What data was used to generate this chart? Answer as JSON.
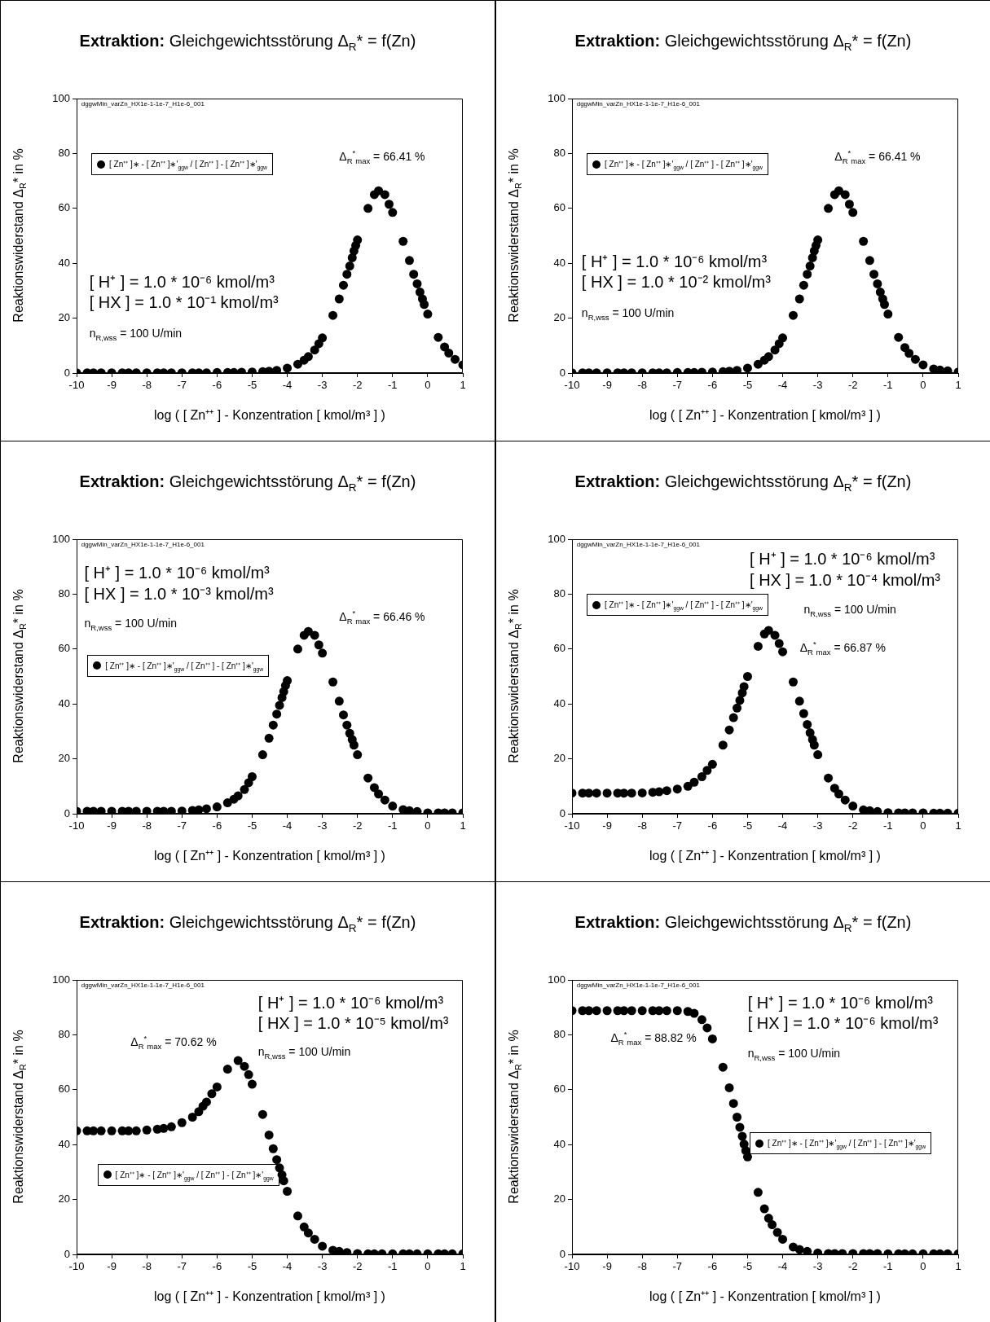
{
  "chart_data": [
    {
      "type": "scatter",
      "title": "Extraktion: Gleichgewichtsstörung Δ$_{R}$* = f(Zn)",
      "xlabel": "log ( [ Zn⁺⁺ ] - Konzentration  [ kmol/m³ ] )",
      "ylabel": "Reaktionswiderstand Δ$_{R}$* in  %",
      "series": [
        {
          "name": "[ Zn⁺⁺ ]∗ - [ Zn⁺⁺ ]∗'$_{ggw}$ / [ Zn⁺⁺ ] - [ Zn⁺⁺ ]∗'$_{ggw}$",
          "color": "#000000",
          "x": [
            -10,
            -9.7,
            -9.52,
            -9.3,
            -9,
            -8.7,
            -8.52,
            -8.3,
            -8,
            -7.7,
            -7.52,
            -7.3,
            -7,
            -6.7,
            -6.52,
            -6.3,
            -6,
            -5.7,
            -5.52,
            -5.3,
            -5,
            -4.7,
            -4.52,
            -4.3,
            -4,
            -3.7,
            -3.52,
            -3.4,
            -3.22,
            -3.1,
            -3,
            -2.7,
            -2.52,
            -2.4,
            -2.3,
            -2.22,
            -2.15,
            -2.1,
            -2.05,
            -2,
            -1.7,
            -1.52,
            -1.4,
            -1.22,
            -1.1,
            -1,
            -0.7,
            -0.52,
            -0.4,
            -0.3,
            -0.22,
            -0.15,
            -0.1,
            0,
            0.3,
            0.48,
            0.6,
            0.78,
            1
          ],
          "values": [
            0.1,
            0.1,
            0.1,
            0.1,
            0.1,
            0.1,
            0.1,
            0.1,
            0.1,
            0.1,
            0.1,
            0.1,
            0.1,
            0.1,
            0.1,
            0.1,
            0.2,
            0.2,
            0.2,
            0.3,
            0.4,
            0.5,
            0.7,
            1.0,
            1.8,
            3.2,
            4.7,
            6,
            8.4,
            10.7,
            12.8,
            21,
            27,
            32,
            36,
            39,
            42,
            44.5,
            46.5,
            48.5,
            60,
            65,
            66.4,
            65,
            61.5,
            58.5,
            48,
            41,
            36,
            32.5,
            29.5,
            27,
            25,
            21.5,
            13,
            9.5,
            7.3,
            5,
            3
          ]
        }
      ],
      "xlim": [
        -10,
        1
      ],
      "xticks": [
        -10,
        -9,
        -8,
        -7,
        -6,
        -5,
        -4,
        -3,
        -2,
        -1,
        0,
        1
      ],
      "ylim": [
        0,
        100
      ],
      "yticks": [
        0,
        20,
        40,
        60,
        80,
        100
      ],
      "marker": "circle",
      "legend": "top left",
      "annotations": [
        "dggwMin_varZn_HX1e-1-1e-7_H1e-6_001",
        "[ H⁺ ] = 1.0 * 10⁻⁶ kmol/m³",
        "[ HX ] = 1.0 * 10⁻¹ kmol/m³",
        "n$_{R,wss}$ = 100 U/min",
        "Δ$_{R}$$^{*}$$_{max}$ = 66.41 %"
      ]
    },
    {
      "type": "scatter",
      "title": "Extraktion: Gleichgewichtsstörung Δ$_{R}$* = f(Zn)",
      "xlabel": "log ( [ Zn⁺⁺ ] - Konzentration  [ kmol/m³ ] )",
      "ylabel": "Reaktionswiderstand Δ$_{R}$* in  %",
      "series": [
        {
          "name": "[ Zn⁺⁺ ]∗ - [ Zn⁺⁺ ]∗'$_{ggw}$ / [ Zn⁺⁺ ] - [ Zn⁺⁺ ]∗'$_{ggw}$",
          "color": "#000000",
          "x": [
            -10,
            -9.7,
            -9.52,
            -9.3,
            -9,
            -8.7,
            -8.52,
            -8.3,
            -8,
            -7.7,
            -7.52,
            -7.3,
            -7,
            -6.7,
            -6.52,
            -6.3,
            -6,
            -5.7,
            -5.52,
            -5.3,
            -5,
            -4.7,
            -4.52,
            -4.4,
            -4.22,
            -4.1,
            -4,
            -3.7,
            -3.52,
            -3.4,
            -3.3,
            -3.22,
            -3.15,
            -3.1,
            -3.05,
            -3,
            -2.7,
            -2.52,
            -2.4,
            -2.22,
            -2.1,
            -2,
            -1.7,
            -1.52,
            -1.4,
            -1.3,
            -1.22,
            -1.15,
            -1.1,
            -1,
            -0.7,
            -0.52,
            -0.4,
            -0.22,
            0,
            0.3,
            0.48,
            0.7,
            1
          ],
          "values": [
            0.1,
            0.1,
            0.1,
            0.1,
            0.1,
            0.1,
            0.1,
            0.1,
            0.1,
            0.1,
            0.1,
            0.1,
            0.2,
            0.2,
            0.2,
            0.3,
            0.4,
            0.5,
            0.7,
            1.0,
            1.8,
            3.2,
            4.7,
            6,
            8.4,
            10.7,
            12.8,
            21,
            27,
            32,
            36,
            39,
            42,
            44.5,
            46.5,
            48.5,
            60,
            65,
            66.4,
            65,
            61.5,
            58.5,
            48,
            41,
            36,
            32.5,
            29.5,
            27,
            25,
            21.5,
            13,
            9.3,
            7.2,
            5,
            3,
            1.5,
            1.1,
            0.8,
            0.4
          ]
        }
      ],
      "xlim": [
        -10,
        1
      ],
      "xticks": [
        -10,
        -9,
        -8,
        -7,
        -6,
        -5,
        -4,
        -3,
        -2,
        -1,
        0,
        1
      ],
      "ylim": [
        0,
        100
      ],
      "yticks": [
        0,
        20,
        40,
        60,
        80,
        100
      ],
      "marker": "circle",
      "legend": "top left",
      "annotations": [
        "dggwMin_varZn_HX1e-1-1e-7_H1e-6_001",
        "[ H⁺ ] = 1.0 * 10⁻⁶ kmol/m³",
        "[ HX ] = 1.0 * 10⁻² kmol/m³",
        "n$_{R,wss}$ = 100 U/min",
        "Δ$_{R}$$^{*}$$_{max}$ = 66.41 %"
      ]
    },
    {
      "type": "scatter",
      "title": "Extraktion: Gleichgewichtsstörung Δ$_{R}$* = f(Zn)",
      "xlabel": "log ( [ Zn⁺⁺ ] - Konzentration  [ kmol/m³ ] )",
      "ylabel": "Reaktionswiderstand Δ$_{R}$* in  %",
      "series": [
        {
          "name": "[ Zn⁺⁺ ]∗ - [ Zn⁺⁺ ]∗'$_{ggw}$ / [ Zn⁺⁺ ] - [ Zn⁺⁺ ]∗'$_{ggw}$",
          "color": "#000000",
          "x": [
            -10,
            -9.7,
            -9.52,
            -9.3,
            -9,
            -8.7,
            -8.52,
            -8.3,
            -8,
            -7.7,
            -7.52,
            -7.3,
            -7,
            -6.7,
            -6.52,
            -6.3,
            -6,
            -5.7,
            -5.52,
            -5.4,
            -5.22,
            -5.1,
            -5,
            -4.7,
            -4.52,
            -4.4,
            -4.3,
            -4.22,
            -4.15,
            -4.1,
            -4.05,
            -4,
            -3.7,
            -3.52,
            -3.4,
            -3.22,
            -3.1,
            -3,
            -2.7,
            -2.52,
            -2.4,
            -2.3,
            -2.22,
            -2.15,
            -2.1,
            -2,
            -1.7,
            -1.52,
            -1.4,
            -1.22,
            -1,
            -0.7,
            -0.52,
            -0.3,
            0,
            0.3,
            0.48,
            0.7,
            1
          ],
          "values": [
            0.9,
            0.9,
            0.9,
            0.9,
            0.9,
            0.9,
            0.9,
            0.9,
            0.9,
            0.9,
            0.9,
            0.9,
            1.0,
            1.2,
            1.4,
            1.8,
            2.5,
            4,
            5.3,
            6.5,
            8.8,
            11.3,
            13.5,
            21.5,
            27.5,
            32.3,
            36.3,
            39.5,
            42.3,
            44.5,
            46.7,
            48.5,
            60,
            65,
            66.4,
            65,
            61.5,
            58.5,
            48,
            41,
            36,
            32.3,
            29.3,
            27,
            25,
            21.5,
            13,
            9.5,
            7.2,
            5,
            2.8,
            1.5,
            1.1,
            0.8,
            0.3,
            0.3,
            0.3,
            0.3,
            0.3
          ]
        }
      ],
      "xlim": [
        -10,
        1
      ],
      "xticks": [
        -10,
        -9,
        -8,
        -7,
        -6,
        -5,
        -4,
        -3,
        -2,
        -1,
        0,
        1
      ],
      "ylim": [
        0,
        100
      ],
      "yticks": [
        0,
        20,
        40,
        60,
        80,
        100
      ],
      "marker": "circle",
      "legend": "left",
      "annotations": [
        "dggwMin_varZn_HX1e-1-1e-7_H1e-6_001",
        "[ H⁺ ] = 1.0 * 10⁻⁶ kmol/m³",
        "[ HX ] = 1.0 * 10⁻³ kmol/m³",
        "n$_{R,wss}$ = 100 U/min",
        "Δ$_{R}$$^{*}$$_{max}$ = 66.46 %"
      ]
    },
    {
      "type": "scatter",
      "title": "Extraktion: Gleichgewichtsstörung Δ$_{R}$* = f(Zn)",
      "xlabel": "log ( [ Zn⁺⁺ ] - Konzentration  [ kmol/m³ ] )",
      "ylabel": "Reaktionswiderstand Δ$_{R}$* in  %",
      "series": [
        {
          "name": "[ Zn⁺⁺ ]∗ - [ Zn⁺⁺ ]∗'$_{ggw}$ / [ Zn⁺⁺ ] - [ Zn⁺⁺ ]∗'$_{ggw}$",
          "color": "#000000",
          "x": [
            -10,
            -9.7,
            -9.52,
            -9.3,
            -9,
            -8.7,
            -8.52,
            -8.3,
            -8,
            -7.7,
            -7.52,
            -7.3,
            -7,
            -6.7,
            -6.52,
            -6.3,
            -6.15,
            -6,
            -5.7,
            -5.52,
            -5.4,
            -5.3,
            -5.22,
            -5.15,
            -5.1,
            -5,
            -4.7,
            -4.52,
            -4.4,
            -4.22,
            -4.1,
            -4,
            -3.7,
            -3.52,
            -3.4,
            -3.3,
            -3.22,
            -3.15,
            -3.1,
            -3,
            -2.7,
            -2.52,
            -2.4,
            -2.22,
            -2,
            -1.7,
            -1.52,
            -1.3,
            -1,
            -0.7,
            -0.52,
            -0.3,
            0,
            0.3,
            0.48,
            0.7,
            1
          ],
          "values": [
            7.5,
            7.5,
            7.5,
            7.5,
            7.5,
            7.5,
            7.5,
            7.5,
            7.6,
            7.8,
            8.0,
            8.4,
            9,
            10,
            11.5,
            13.5,
            15.8,
            18,
            25,
            30.5,
            35,
            38.5,
            41.3,
            44,
            46.3,
            50,
            61,
            65.5,
            66.8,
            65,
            62,
            59,
            48,
            41,
            36.5,
            32.5,
            29.5,
            27,
            25,
            21.5,
            13,
            9.3,
            7.2,
            5,
            2.8,
            1.4,
            1.1,
            0.8,
            0.4,
            0.3,
            0.3,
            0.3,
            0.3,
            0.2,
            0.2,
            0.2,
            0.2
          ]
        }
      ],
      "xlim": [
        -10,
        1
      ],
      "xticks": [
        -10,
        -9,
        -8,
        -7,
        -6,
        -5,
        -4,
        -3,
        -2,
        -1,
        0,
        1
      ],
      "ylim": [
        0,
        100
      ],
      "yticks": [
        0,
        20,
        40,
        60,
        80,
        100
      ],
      "marker": "circle",
      "legend": "top left",
      "annotations": [
        "dggwMin_varZn_HX1e-1-1e-7_H1e-6_001",
        "[ H⁺ ] = 1.0 * 10⁻⁶ kmol/m³",
        "[ HX ] = 1.0 * 10⁻⁴ kmol/m³",
        "n$_{R,wss}$ = 100 U/min",
        "Δ$_{R}$$^{*}$$_{max}$ = 66.87 %"
      ]
    },
    {
      "type": "scatter",
      "title": "Extraktion: Gleichgewichtsstörung Δ$_{R}$* = f(Zn)",
      "xlabel": "log ( [ Zn⁺⁺ ] - Konzentration  [ kmol/m³ ] )",
      "ylabel": "Reaktionswiderstand Δ$_{R}$* in  %",
      "series": [
        {
          "name": "[ Zn⁺⁺ ]∗ - [ Zn⁺⁺ ]∗'$_{ggw}$ / [ Zn⁺⁺ ] - [ Zn⁺⁺ ]∗'$_{ggw}$",
          "color": "#000000",
          "x": [
            -10,
            -9.7,
            -9.52,
            -9.3,
            -9,
            -8.7,
            -8.52,
            -8.3,
            -8,
            -7.7,
            -7.52,
            -7.3,
            -7,
            -6.7,
            -6.52,
            -6.4,
            -6.3,
            -6.15,
            -6,
            -5.7,
            -5.4,
            -5.22,
            -5.1,
            -5,
            -4.7,
            -4.52,
            -4.4,
            -4.3,
            -4.22,
            -4.15,
            -4.1,
            -4,
            -3.7,
            -3.52,
            -3.4,
            -3.22,
            -3,
            -2.7,
            -2.52,
            -2.3,
            -2,
            -1.7,
            -1.52,
            -1.3,
            -1,
            -0.7,
            -0.52,
            -0.3,
            0,
            0.3,
            0.48,
            0.7,
            1
          ],
          "values": [
            45,
            45,
            45,
            45,
            45,
            45,
            45,
            45,
            45.3,
            45.6,
            45.9,
            46.5,
            48,
            50,
            52,
            54,
            55.5,
            58.5,
            61,
            67.5,
            70.6,
            68.5,
            65.5,
            62,
            51,
            43.5,
            38.5,
            34.5,
            31.5,
            29,
            26.8,
            23,
            14,
            10,
            7.8,
            5.5,
            3,
            1.5,
            1.1,
            0.7,
            0.3,
            0.2,
            0.2,
            0.2,
            0.2,
            0.2,
            0.2,
            0.2,
            0.2,
            0.2,
            0.2,
            0.2,
            0.2
          ]
        }
      ],
      "xlim": [
        -10,
        1
      ],
      "xticks": [
        -10,
        -9,
        -8,
        -7,
        -6,
        -5,
        -4,
        -3,
        -2,
        -1,
        0,
        1
      ],
      "ylim": [
        0,
        100
      ],
      "yticks": [
        0,
        20,
        40,
        60,
        80,
        100
      ],
      "marker": "circle",
      "legend": "bottom left",
      "annotations": [
        "dggwMin_varZn_HX1e-1-1e-7_H1e-6_001",
        "[ H⁺ ] = 1.0 * 10⁻⁶ kmol/m³",
        "[ HX ] = 1.0 * 10⁻⁵ kmol/m³",
        "n$_{R,wss}$ = 100 U/min",
        "Δ$_{R}$$^{*}$$_{max}$ = 70.62 %"
      ]
    },
    {
      "type": "scatter",
      "title": "Extraktion: Gleichgewichtsstörung Δ$_{R}$* = f(Zn)",
      "xlabel": "log ( [ Zn⁺⁺ ] - Konzentration  [ kmol/m³ ] )",
      "ylabel": "Reaktionswiderstand Δ$_{R}$* in  %",
      "series": [
        {
          "name": "[ Zn⁺⁺ ]∗ - [ Zn⁺⁺ ]∗'$_{ggw}$ / [ Zn⁺⁺ ] - [ Zn⁺⁺ ]∗'$_{ggw}$",
          "color": "#000000",
          "x": [
            -10,
            -9.7,
            -9.52,
            -9.3,
            -9,
            -8.7,
            -8.52,
            -8.3,
            -8,
            -7.7,
            -7.52,
            -7.3,
            -7,
            -6.7,
            -6.52,
            -6.3,
            -6.15,
            -6,
            -5.7,
            -5.52,
            -5.4,
            -5.3,
            -5.22,
            -5.15,
            -5.1,
            -5.05,
            -5,
            -4.7,
            -4.52,
            -4.4,
            -4.3,
            -4.15,
            -4,
            -3.7,
            -3.52,
            -3.3,
            -3,
            -2.7,
            -2.52,
            -2.3,
            -2,
            -1.7,
            -1.52,
            -1.3,
            -1,
            -0.7,
            -0.52,
            -0.3,
            0,
            0.3,
            0.48,
            0.7,
            1
          ],
          "values": [
            88.8,
            88.8,
            88.8,
            88.8,
            88.8,
            88.8,
            88.8,
            88.8,
            88.8,
            88.8,
            88.8,
            88.8,
            88.8,
            88.5,
            87.8,
            85.5,
            82.5,
            78.5,
            68.2,
            60.7,
            55,
            50,
            46.3,
            43,
            40.2,
            37.8,
            35.5,
            22.6,
            16.6,
            13.2,
            10.8,
            8,
            5.5,
            2.7,
            1.8,
            1.1,
            0.5,
            0.3,
            0.3,
            0.3,
            0.3,
            0.3,
            0.3,
            0.3,
            0.2,
            0.2,
            0.2,
            0.2,
            0.2,
            0.2,
            0.2,
            0.2,
            0.2
          ]
        }
      ],
      "xlim": [
        -10,
        1
      ],
      "xticks": [
        -10,
        -9,
        -8,
        -7,
        -6,
        -5,
        -4,
        -3,
        -2,
        -1,
        0,
        1
      ],
      "ylim": [
        0,
        100
      ],
      "yticks": [
        0,
        20,
        40,
        60,
        80,
        100
      ],
      "marker": "circle",
      "legend": "right",
      "annotations": [
        "dggwMin_varZn_HX1e-1-1e-7_H1e-6_001",
        "[ H⁺ ] = 1.0 * 10⁻⁶ kmol/m³",
        "[ HX ] = 1.0 * 10⁻⁶ kmol/m³",
        "n$_{R,wss}$ = 100 U/min",
        "Δ$_{R}$$^{*}$$_{max}$ = 88.82 %"
      ]
    }
  ]
}
